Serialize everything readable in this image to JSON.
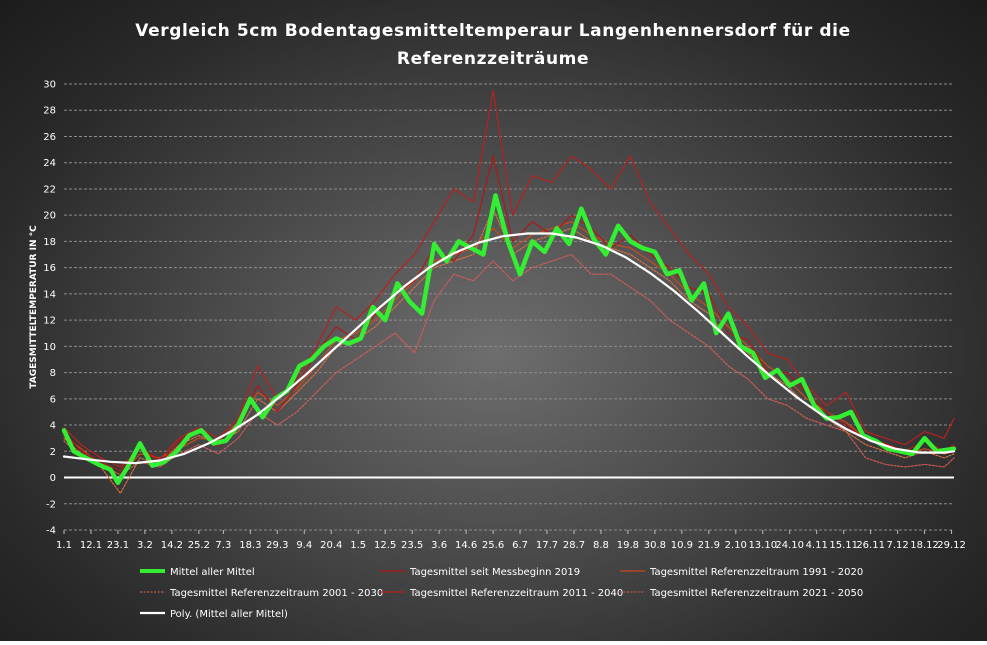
{
  "chart_data": {
    "type": "line",
    "title_line1": "Vergleich 5cm Bodentagesmitteltemperaur Langenhennersdorf für die",
    "title_line2": "Referenzzeiträume",
    "ylabel": "TAGESMITTELTEMPERATUR IN °C",
    "xlabel": "",
    "ylim": [
      -4,
      30
    ],
    "yticks": [
      -4,
      -2,
      0,
      2,
      4,
      6,
      8,
      10,
      12,
      14,
      16,
      18,
      20,
      22,
      24,
      26,
      28,
      30
    ],
    "xlim": [
      1,
      364
    ],
    "xticks": [
      {
        "day": 1,
        "label": "1.1"
      },
      {
        "day": 12,
        "label": "12.1"
      },
      {
        "day": 23,
        "label": "23.1"
      },
      {
        "day": 34,
        "label": "3.2"
      },
      {
        "day": 45,
        "label": "14.2"
      },
      {
        "day": 56,
        "label": "25.2"
      },
      {
        "day": 66,
        "label": "7.3"
      },
      {
        "day": 77,
        "label": "18.3"
      },
      {
        "day": 88,
        "label": "29.3"
      },
      {
        "day": 99,
        "label": "9.4"
      },
      {
        "day": 110,
        "label": "20.4"
      },
      {
        "day": 121,
        "label": "1.5"
      },
      {
        "day": 132,
        "label": "12.5"
      },
      {
        "day": 143,
        "label": "23.5"
      },
      {
        "day": 154,
        "label": "3.6"
      },
      {
        "day": 165,
        "label": "14.6"
      },
      {
        "day": 176,
        "label": "25.6"
      },
      {
        "day": 187,
        "label": "6.7"
      },
      {
        "day": 198,
        "label": "17.7"
      },
      {
        "day": 209,
        "label": "28.7"
      },
      {
        "day": 220,
        "label": "8.8"
      },
      {
        "day": 231,
        "label": "19.8"
      },
      {
        "day": 242,
        "label": "30.8"
      },
      {
        "day": 253,
        "label": "10.9"
      },
      {
        "day": 264,
        "label": "21.9"
      },
      {
        "day": 275,
        "label": "2.10"
      },
      {
        "day": 286,
        "label": "13.10"
      },
      {
        "day": 297,
        "label": "24.10"
      },
      {
        "day": 308,
        "label": "4.11"
      },
      {
        "day": 319,
        "label": "15.11"
      },
      {
        "day": 330,
        "label": "26.11"
      },
      {
        "day": 341,
        "label": "7.12"
      },
      {
        "day": 352,
        "label": "18.12"
      },
      {
        "day": 363,
        "label": "29.12"
      }
    ],
    "grid": true,
    "legend_position": "bottom",
    "series": [
      {
        "name": "Mittel aller Mittel",
        "color": "#33ee33",
        "style": "thick",
        "x": [
          1,
          5,
          10,
          15,
          20,
          23,
          27,
          32,
          37,
          42,
          47,
          52,
          57,
          62,
          67,
          72,
          77,
          82,
          87,
          92,
          97,
          102,
          107,
          112,
          117,
          122,
          127,
          132,
          137,
          142,
          147,
          152,
          157,
          162,
          167,
          172,
          177,
          182,
          187,
          192,
          197,
          202,
          207,
          212,
          217,
          222,
          227,
          232,
          237,
          242,
          247,
          252,
          257,
          262,
          267,
          272,
          277,
          282,
          287,
          292,
          297,
          302,
          307,
          312,
          317,
          322,
          327,
          332,
          337,
          342,
          347,
          352,
          357,
          364
        ],
        "y": [
          3.6,
          2.0,
          1.5,
          1.0,
          0.6,
          -0.4,
          0.8,
          2.6,
          0.9,
          1.2,
          2.0,
          3.2,
          3.6,
          2.6,
          2.8,
          4.0,
          6.0,
          4.6,
          6.0,
          6.6,
          8.5,
          9.0,
          10.0,
          10.6,
          10.2,
          10.6,
          13.0,
          12.0,
          14.8,
          13.4,
          12.5,
          17.8,
          16.5,
          18.0,
          17.5,
          17.0,
          21.5,
          18.0,
          15.5,
          18.0,
          17.2,
          19.0,
          17.8,
          20.5,
          18.2,
          17.0,
          19.2,
          18.0,
          17.5,
          17.2,
          15.5,
          15.8,
          13.5,
          14.8,
          11.0,
          12.5,
          10.0,
          9.5,
          7.6,
          8.2,
          7.0,
          7.5,
          5.5,
          4.5,
          4.6,
          5.0,
          3.2,
          2.8,
          2.2,
          2.0,
          1.8,
          3.0,
          2.0,
          2.2
        ]
      },
      {
        "name": "Tagesmittel seit Messbeginn 2019",
        "color": "#b01818",
        "style": "thin",
        "x": [
          1,
          8,
          16,
          24,
          32,
          40,
          48,
          56,
          64,
          72,
          80,
          88,
          96,
          104,
          112,
          120,
          128,
          136,
          144,
          152,
          160,
          168,
          176,
          184,
          192,
          200,
          208,
          216,
          224,
          232,
          240,
          248,
          256,
          264,
          272,
          280,
          288,
          296,
          304,
          312,
          320,
          328,
          336,
          344,
          352,
          360,
          364
        ],
        "y": [
          3.5,
          2.0,
          1.2,
          0.5,
          2.5,
          1.0,
          2.8,
          3.6,
          2.4,
          4.0,
          7.0,
          5.0,
          7.0,
          9.5,
          11.5,
          10.5,
          12.5,
          14.0,
          15.0,
          17.5,
          16.5,
          18.5,
          24.5,
          18.0,
          19.5,
          18.5,
          20.0,
          19.0,
          17.5,
          18.5,
          17.0,
          16.0,
          14.5,
          14.0,
          11.0,
          10.5,
          8.0,
          8.0,
          6.5,
          5.0,
          4.0,
          3.0,
          2.6,
          2.0,
          2.8,
          2.0,
          2.5
        ]
      },
      {
        "name": "Tagesmittel Referenzzeitraum 1991 - 2020",
        "color": "#c84a1c",
        "style": "thin",
        "x": [
          1,
          8,
          16,
          24,
          32,
          40,
          48,
          56,
          64,
          72,
          80,
          88,
          96,
          104,
          112,
          120,
          128,
          136,
          144,
          152,
          160,
          168,
          176,
          184,
          192,
          200,
          208,
          216,
          224,
          232,
          240,
          248,
          256,
          264,
          272,
          280,
          288,
          296,
          304,
          312,
          320,
          328,
          336,
          344,
          352,
          360,
          364
        ],
        "y": [
          3.2,
          2.2,
          1.0,
          0.2,
          1.8,
          1.5,
          2.2,
          3.0,
          2.8,
          4.2,
          6.5,
          5.5,
          6.8,
          8.5,
          10.5,
          11.0,
          12.0,
          13.5,
          15.0,
          16.5,
          17.0,
          17.5,
          19.0,
          17.5,
          18.5,
          19.0,
          19.5,
          18.5,
          17.8,
          17.5,
          16.5,
          15.5,
          14.0,
          13.0,
          11.5,
          10.0,
          8.5,
          7.5,
          6.0,
          5.0,
          4.2,
          3.0,
          2.5,
          1.8,
          2.2,
          1.8,
          2.0
        ]
      },
      {
        "name": "Tagesmittel Referenzzeitraum 2001 - 2030",
        "color": "#e07040",
        "style": "dotted",
        "x": [
          1,
          8,
          16,
          24,
          32,
          40,
          48,
          56,
          64,
          72,
          80,
          88,
          96,
          104,
          112,
          120,
          128,
          136,
          144,
          152,
          160,
          168,
          176,
          184,
          192,
          200,
          208,
          216,
          224,
          232,
          240,
          248,
          256,
          264,
          272,
          280,
          288,
          296,
          304,
          312,
          320,
          328,
          336,
          344,
          352,
          360,
          364
        ],
        "y": [
          3.0,
          1.8,
          0.8,
          -1.2,
          1.5,
          1.0,
          2.5,
          3.2,
          2.6,
          3.5,
          6.0,
          5.0,
          6.5,
          8.0,
          10.0,
          10.5,
          11.5,
          13.0,
          14.5,
          16.0,
          16.5,
          17.0,
          20.5,
          17.0,
          18.0,
          18.5,
          19.0,
          18.0,
          17.5,
          17.0,
          16.0,
          15.0,
          13.5,
          12.5,
          10.5,
          9.5,
          8.0,
          7.0,
          5.5,
          4.5,
          3.5,
          2.5,
          2.0,
          1.5,
          2.0,
          1.5,
          1.8
        ]
      },
      {
        "name": "Tagesmittel Referenzzeitraum 2011 - 2040",
        "color": "#b82020",
        "style": "thin",
        "x": [
          1,
          8,
          16,
          24,
          32,
          40,
          48,
          56,
          64,
          72,
          80,
          88,
          96,
          104,
          112,
          120,
          128,
          136,
          144,
          152,
          160,
          168,
          176,
          184,
          192,
          200,
          208,
          216,
          224,
          232,
          240,
          248,
          256,
          264,
          272,
          280,
          288,
          296,
          304,
          312,
          320,
          328,
          336,
          344,
          352,
          360,
          364
        ],
        "y": [
          3.8,
          2.5,
          1.5,
          0.8,
          2.2,
          1.4,
          3.0,
          3.8,
          3.0,
          4.5,
          8.5,
          6.0,
          7.5,
          10.0,
          13.0,
          12.0,
          13.5,
          15.5,
          17.0,
          19.5,
          22.0,
          21.0,
          29.5,
          20.0,
          23.0,
          22.5,
          24.5,
          23.5,
          22.0,
          24.5,
          21.0,
          19.0,
          17.0,
          15.5,
          13.0,
          11.5,
          9.5,
          9.0,
          7.0,
          5.5,
          6.5,
          3.5,
          3.0,
          2.5,
          3.5,
          3.0,
          4.5
        ]
      },
      {
        "name": "Tagesmittel Referenzzeitraum 2021 - 2050",
        "color": "#d85a5a",
        "style": "dotted",
        "x": [
          1,
          8,
          16,
          24,
          32,
          40,
          48,
          56,
          64,
          72,
          80,
          88,
          96,
          104,
          112,
          120,
          128,
          136,
          144,
          152,
          160,
          168,
          176,
          184,
          192,
          200,
          208,
          216,
          224,
          232,
          240,
          248,
          256,
          264,
          272,
          280,
          288,
          296,
          304,
          312,
          320,
          328,
          336,
          344,
          352,
          360,
          364
        ],
        "y": [
          2.8,
          1.5,
          1.0,
          0.2,
          1.2,
          0.8,
          1.8,
          2.5,
          1.8,
          3.0,
          5.0,
          4.0,
          5.0,
          6.5,
          8.0,
          9.0,
          10.0,
          11.0,
          9.5,
          13.5,
          15.5,
          15.0,
          16.5,
          15.0,
          16.0,
          16.5,
          17.0,
          15.5,
          15.5,
          14.5,
          13.5,
          12.0,
          11.0,
          10.0,
          8.5,
          7.5,
          6.0,
          5.5,
          4.5,
          4.0,
          3.5,
          1.5,
          1.0,
          0.8,
          1.0,
          0.8,
          1.5
        ]
      },
      {
        "name": "Poly. (Mittel aller Mittel)",
        "color": "#ffffff",
        "style": "smooth",
        "x": [
          1,
          10,
          20,
          30,
          40,
          50,
          60,
          70,
          80,
          90,
          100,
          110,
          120,
          130,
          140,
          150,
          160,
          170,
          180,
          190,
          200,
          210,
          220,
          230,
          240,
          250,
          260,
          270,
          280,
          290,
          300,
          310,
          320,
          330,
          340,
          350,
          360,
          364
        ],
        "y": [
          1.6,
          1.4,
          1.2,
          1.1,
          1.3,
          1.8,
          2.6,
          3.6,
          4.8,
          6.3,
          7.9,
          9.6,
          11.3,
          13.0,
          14.6,
          16.0,
          17.1,
          17.9,
          18.4,
          18.6,
          18.6,
          18.3,
          17.7,
          16.8,
          15.6,
          14.2,
          12.6,
          10.9,
          9.2,
          7.6,
          6.1,
          4.8,
          3.7,
          2.8,
          2.2,
          1.9,
          1.9,
          2.0
        ]
      }
    ]
  }
}
